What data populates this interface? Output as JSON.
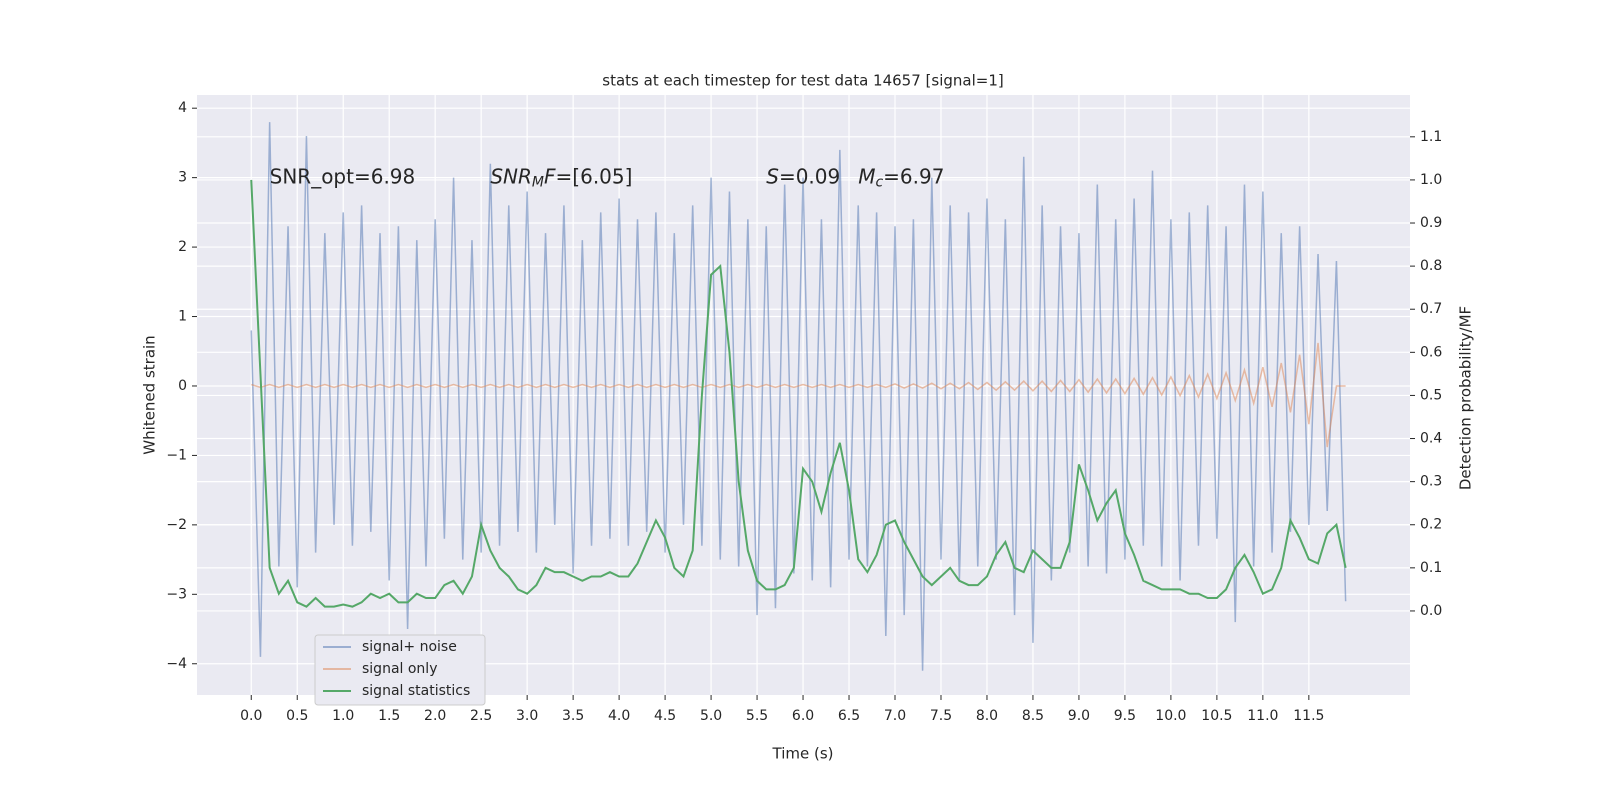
{
  "chart_data": {
    "type": "line",
    "title": "stats at each timestep for test data 14657 [signal=1]",
    "x_label": "Time (s)",
    "y_label": "Whitened strain",
    "y2_label": "Detection probability/MF",
    "annotations": [
      {
        "parts": [
          {
            "text": "SNR_opt=6.98"
          }
        ]
      },
      {
        "parts": [
          {
            "text": "SNR",
            "style": "italic"
          },
          {
            "text": "M",
            "style": "italic-sub"
          },
          {
            "text": "F",
            "style": "italic"
          },
          {
            "text": "=[6.05]"
          }
        ]
      },
      {
        "parts": [
          {
            "text": "S",
            "style": "italic"
          },
          {
            "text": "=0.09"
          }
        ]
      },
      {
        "parts": [
          {
            "text": "M",
            "style": "italic"
          },
          {
            "text": "c",
            "style": "italic-sub"
          },
          {
            "text": "=6.97"
          }
        ]
      }
    ],
    "x": [
      0,
      0.1,
      0.2,
      0.3,
      0.4,
      0.5,
      0.6,
      0.7,
      0.8,
      0.9,
      1,
      1.1,
      1.2,
      1.3,
      1.4,
      1.5,
      1.6,
      1.7,
      1.8,
      1.9,
      2,
      2.1,
      2.2,
      2.3,
      2.4,
      2.5,
      2.6,
      2.7,
      2.8,
      2.9,
      3,
      3.1,
      3.2,
      3.3,
      3.4,
      3.5,
      3.6,
      3.7,
      3.8,
      3.9,
      4,
      4.1,
      4.2,
      4.3,
      4.4,
      4.5,
      4.6,
      4.7,
      4.8,
      4.9,
      5,
      5.1,
      5.2,
      5.3,
      5.4,
      5.5,
      5.6,
      5.7,
      5.8,
      5.9,
      6,
      6.1,
      6.2,
      6.3,
      6.4,
      6.5,
      6.6,
      6.7,
      6.8,
      6.9,
      7,
      7.1,
      7.2,
      7.3,
      7.4,
      7.5,
      7.6,
      7.7,
      7.8,
      7.9,
      8,
      8.1,
      8.2,
      8.3,
      8.4,
      8.5,
      8.6,
      8.7,
      8.8,
      8.9,
      9,
      9.1,
      9.2,
      9.3,
      9.4,
      9.5,
      9.6,
      9.7,
      9.8,
      9.9,
      10,
      10.1,
      10.2,
      10.3,
      10.4,
      10.5,
      10.6,
      10.7,
      10.8,
      10.9,
      11,
      11.1,
      11.2,
      11.3,
      11.4,
      11.5,
      11.6,
      11.7,
      11.8,
      11.9
    ],
    "series": [
      {
        "name": "signal+ noise",
        "color": "#4c72b0",
        "values": [
          0.8,
          -3.9,
          3.8,
          -2.6,
          2.3,
          -2.9,
          3.6,
          -2.4,
          2.2,
          -2.0,
          2.5,
          -2.3,
          2.6,
          -2.1,
          2.2,
          -2.8,
          2.3,
          -3.5,
          2.1,
          -2.6,
          2.4,
          -2.2,
          3.0,
          -2.5,
          2.1,
          -2.4,
          3.2,
          -2.3,
          2.6,
          -2.1,
          2.8,
          -2.4,
          2.2,
          -2.0,
          2.6,
          -2.7,
          2.1,
          -2.3,
          2.5,
          -2.2,
          2.7,
          -2.3,
          2.4,
          -2.1,
          2.5,
          -2.4,
          2.2,
          -2.0,
          2.6,
          -2.3,
          3.0,
          -2.5,
          2.8,
          -2.6,
          2.4,
          -3.3,
          2.3,
          -3.2,
          2.9,
          -2.7,
          3.0,
          -2.8,
          2.4,
          -2.9,
          3.4,
          -2.5,
          2.6,
          -2.6,
          2.5,
          -3.6,
          2.3,
          -3.3,
          2.4,
          -4.1,
          3.0,
          -2.5,
          2.6,
          -2.8,
          2.5,
          -2.6,
          2.7,
          -2.5,
          2.4,
          -3.3,
          3.3,
          -3.7,
          2.6,
          -2.8,
          2.3,
          -2.4,
          2.2,
          -2.6,
          2.9,
          -2.7,
          2.4,
          -2.5,
          2.7,
          -2.3,
          3.1,
          -2.6,
          2.4,
          -2.8,
          2.5,
          -2.3,
          2.6,
          -2.2,
          2.3,
          -3.4,
          2.9,
          -2.6,
          2.8,
          -2.4,
          2.2,
          -2.1,
          2.3,
          -2.0,
          1.9,
          -1.8,
          1.8,
          -3.1
        ]
      },
      {
        "name": "signal only",
        "color": "#dd8452",
        "values": [
          0.02,
          -0.02,
          0.02,
          -0.02,
          0.02,
          -0.02,
          0.02,
          -0.02,
          0.02,
          -0.02,
          0.02,
          -0.02,
          0.02,
          -0.02,
          0.02,
          -0.02,
          0.02,
          -0.02,
          0.02,
          -0.02,
          0.02,
          -0.02,
          0.02,
          -0.02,
          0.02,
          -0.02,
          0.02,
          -0.02,
          0.02,
          -0.02,
          0.02,
          -0.02,
          0.02,
          -0.02,
          0.02,
          -0.02,
          0.02,
          -0.02,
          0.02,
          -0.02,
          0.02,
          -0.02,
          0.02,
          -0.02,
          0.02,
          -0.02,
          0.02,
          -0.02,
          0.02,
          -0.02,
          0.02,
          -0.02,
          0.02,
          -0.02,
          0.02,
          -0.02,
          0.02,
          -0.02,
          0.02,
          -0.02,
          0.02,
          -0.02,
          0.02,
          -0.02,
          0.02,
          -0.02,
          0.02,
          -0.02,
          0.02,
          -0.02,
          0.03,
          -0.03,
          0.03,
          -0.03,
          0.04,
          -0.04,
          0.04,
          -0.04,
          0.05,
          -0.05,
          0.05,
          -0.06,
          0.06,
          -0.06,
          0.07,
          -0.07,
          0.07,
          -0.08,
          0.08,
          -0.08,
          0.09,
          -0.09,
          0.1,
          -0.1,
          0.1,
          -0.11,
          0.11,
          -0.12,
          0.12,
          -0.13,
          0.13,
          -0.14,
          0.15,
          -0.16,
          0.17,
          -0.18,
          0.19,
          -0.21,
          0.23,
          -0.25,
          0.27,
          -0.3,
          0.33,
          -0.38,
          0.45,
          -0.55,
          0.62,
          -0.88,
          0,
          0
        ]
      },
      {
        "name": "signal statistics",
        "color": "#55a868",
        "axis": "y2",
        "values": [
          1.0,
          0.55,
          0.1,
          0.04,
          0.07,
          0.02,
          0.01,
          0.03,
          0.01,
          0.01,
          0.015,
          0.01,
          0.02,
          0.04,
          0.03,
          0.04,
          0.02,
          0.02,
          0.04,
          0.03,
          0.03,
          0.06,
          0.07,
          0.04,
          0.08,
          0.2,
          0.14,
          0.1,
          0.08,
          0.05,
          0.04,
          0.06,
          0.1,
          0.09,
          0.09,
          0.08,
          0.07,
          0.08,
          0.08,
          0.09,
          0.08,
          0.08,
          0.11,
          0.16,
          0.21,
          0.17,
          0.1,
          0.08,
          0.14,
          0.5,
          0.78,
          0.8,
          0.6,
          0.3,
          0.14,
          0.07,
          0.05,
          0.05,
          0.06,
          0.1,
          0.33,
          0.3,
          0.23,
          0.32,
          0.39,
          0.28,
          0.12,
          0.09,
          0.13,
          0.2,
          0.21,
          0.16,
          0.12,
          0.08,
          0.06,
          0.08,
          0.1,
          0.07,
          0.06,
          0.06,
          0.08,
          0.13,
          0.16,
          0.1,
          0.09,
          0.14,
          0.12,
          0.1,
          0.1,
          0.16,
          0.34,
          0.28,
          0.21,
          0.25,
          0.28,
          0.18,
          0.13,
          0.07,
          0.06,
          0.05,
          0.05,
          0.05,
          0.04,
          0.04,
          0.03,
          0.03,
          0.05,
          0.1,
          0.13,
          0.09,
          0.04,
          0.05,
          0.1,
          0.21,
          0.17,
          0.12,
          0.11,
          0.18,
          0.2,
          0.1
        ]
      }
    ],
    "xlim": [
      -0.59,
      12.6
    ],
    "xticks": [
      {
        "value": 0,
        "label": "0.0"
      },
      0.5,
      {
        "value": 1,
        "label": "1.0"
      },
      1.5,
      {
        "value": 2,
        "label": "2.0"
      },
      2.5,
      {
        "value": 3,
        "label": "3.0"
      },
      3.5,
      {
        "value": 4,
        "label": "4.0"
      },
      4.5,
      {
        "value": 5,
        "label": "5.0"
      },
      5.5,
      {
        "value": 6,
        "label": "6.0"
      },
      6.5,
      {
        "value": 7,
        "label": "7.0"
      },
      7.5,
      {
        "value": 8,
        "label": "8.0"
      },
      8.5,
      {
        "value": 9,
        "label": "9.0"
      },
      9.5,
      {
        "value": 10,
        "label": "10.0"
      },
      10.5,
      {
        "value": 11,
        "label": "11.0"
      },
      11.5
    ],
    "ylim": [
      -4.45,
      4.19
    ],
    "yticks": [
      {
        "value": -4,
        "label": "−4"
      },
      {
        "value": -3,
        "label": "−3"
      },
      {
        "value": -2,
        "label": "−2"
      },
      {
        "value": -1,
        "label": "−1"
      },
      0,
      1,
      2,
      3,
      4
    ],
    "y2lim": [
      -0.195,
      1.197
    ],
    "y2ticks": [
      {
        "value": 0,
        "label": "0.0"
      },
      0.1,
      0.2,
      0.3,
      0.4,
      0.5,
      0.6,
      0.7,
      0.8,
      0.9,
      {
        "value": 1,
        "label": "1.0"
      },
      1.1
    ],
    "grid": true,
    "background": "#eaeaf2",
    "legend_loc": "lower left",
    "line_alpha": 0.5
  }
}
